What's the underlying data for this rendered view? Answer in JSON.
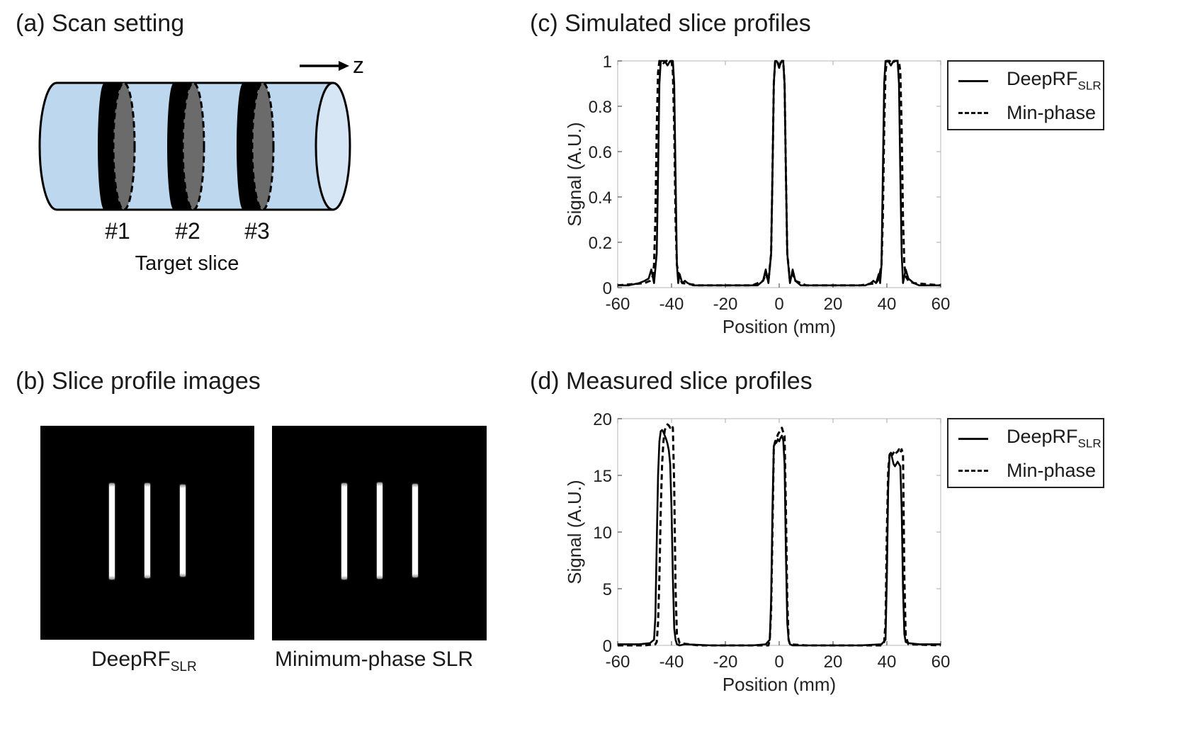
{
  "panels": {
    "a": {
      "title": "(a) Scan setting",
      "axis_label": "z",
      "slice_labels": [
        "#1",
        "#2",
        "#3"
      ],
      "caption": "Target slice",
      "colors": {
        "cylinder": "#bcd7ee",
        "cylinder_end": "#d6e6f5",
        "slice_dark": "#000000",
        "slice_face": "#6b6b6b"
      }
    },
    "b": {
      "title": "(b) Slice profile images",
      "images": [
        {
          "caption_main": "DeepRF",
          "caption_sub": "SLR"
        },
        {
          "caption_main": "Minimum-phase SLR",
          "caption_sub": ""
        }
      ]
    },
    "c": {
      "title": "(c) Simulated slice profiles"
    },
    "d": {
      "title": "(d) Measured slice profiles"
    }
  },
  "legend": {
    "deeprf_main": "DeepRF",
    "deeprf_sub": "SLR",
    "minphase": "Min-phase"
  },
  "chart_data": [
    {
      "id": "c",
      "type": "line",
      "title": "(c) Simulated slice profiles",
      "xlabel": "Position (mm)",
      "ylabel": "Signal (A.U.)",
      "xlim": [
        -60,
        60
      ],
      "ylim": [
        0,
        1
      ],
      "xticks": [
        -60,
        -40,
        -20,
        0,
        20,
        40,
        60
      ],
      "yticks": [
        0,
        0.2,
        0.4,
        0.6,
        0.8,
        1
      ],
      "ytick_labels": [
        "0",
        "0.2",
        "0.4",
        "0.6",
        "0.8",
        "1"
      ],
      "grid": false,
      "legend_position": "outside-right-top",
      "series": [
        {
          "name": "DeepRF_SLR",
          "style": "solid",
          "x": [
            -60,
            -56,
            -52,
            -50,
            -48.5,
            -47.5,
            -46.5,
            -45.5,
            -45,
            -44.5,
            -44,
            -43.5,
            -43,
            -42.5,
            -42,
            -41.5,
            -41,
            -40.5,
            -40,
            -39.5,
            -39,
            -38.5,
            -38,
            -37.5,
            -37,
            -36,
            -35,
            -34,
            -32,
            -28,
            -20,
            -12,
            -8,
            -6,
            -5,
            -4,
            -3,
            -2.5,
            -2,
            -1.5,
            -1,
            -0.5,
            0,
            0.5,
            1,
            1.5,
            2,
            2.5,
            3,
            4,
            5,
            6,
            8,
            12,
            20,
            28,
            32,
            34,
            35,
            36,
            37,
            37.5,
            38,
            38.5,
            39,
            39.5,
            40,
            40.5,
            41,
            41.5,
            42,
            42.5,
            43,
            43.5,
            44,
            44.5,
            45,
            45.5,
            46,
            47,
            48,
            49,
            50,
            52,
            56,
            60
          ],
          "y": [
            0.01,
            0.01,
            0.02,
            0.03,
            0.04,
            0.08,
            0.02,
            0.15,
            0.5,
            0.9,
            1.0,
            1.0,
            1.0,
            1.0,
            0.99,
            0.98,
            0.99,
            1.0,
            1.0,
            1.0,
            0.9,
            0.5,
            0.1,
            0.02,
            0.06,
            0.02,
            0.03,
            0.02,
            0.01,
            0.01,
            0.01,
            0.01,
            0.01,
            0.03,
            0.08,
            0.02,
            0.15,
            0.5,
            0.9,
            1.0,
            1.0,
            0.99,
            0.97,
            0.99,
            1.0,
            1.0,
            0.9,
            0.5,
            0.15,
            0.02,
            0.08,
            0.03,
            0.01,
            0.01,
            0.01,
            0.01,
            0.01,
            0.02,
            0.03,
            0.02,
            0.06,
            0.02,
            0.1,
            0.5,
            0.9,
            1.0,
            1.0,
            1.0,
            0.99,
            0.98,
            0.99,
            1.0,
            1.0,
            1.0,
            1.0,
            0.9,
            0.5,
            0.15,
            0.02,
            0.08,
            0.04,
            0.03,
            0.02,
            0.01,
            0.01,
            0.01
          ]
        },
        {
          "name": "Min-phase",
          "style": "dashed",
          "x": [
            -60,
            -50,
            -48,
            -47,
            -46.5,
            -46,
            -45.5,
            -45,
            -44.5,
            -44,
            -43,
            -42,
            -41,
            -40,
            -39.5,
            -39,
            -38.5,
            -38,
            -37,
            -36,
            -30,
            -20,
            -10,
            -6,
            -5,
            -4,
            -3,
            -2.5,
            -2,
            -1.5,
            -1,
            -0.5,
            0,
            0.5,
            1,
            1.5,
            2,
            2.5,
            3,
            4,
            5,
            6,
            10,
            20,
            30,
            36,
            37,
            38,
            38.5,
            39,
            39.5,
            40,
            41,
            42,
            43,
            44,
            44.5,
            45,
            45.5,
            46,
            46.5,
            47,
            48,
            50,
            60
          ],
          "y": [
            0.01,
            0.02,
            0.03,
            0.05,
            0.1,
            0.3,
            0.7,
            0.95,
            1.0,
            1.0,
            0.99,
            1.0,
            1.0,
            1.0,
            0.95,
            0.7,
            0.3,
            0.1,
            0.04,
            0.02,
            0.01,
            0.01,
            0.01,
            0.03,
            0.06,
            0.03,
            0.15,
            0.5,
            0.9,
            1.0,
            1.0,
            0.99,
            0.97,
            0.99,
            1.0,
            1.0,
            0.9,
            0.5,
            0.15,
            0.03,
            0.06,
            0.03,
            0.01,
            0.01,
            0.01,
            0.02,
            0.04,
            0.1,
            0.3,
            0.7,
            0.95,
            1.0,
            1.0,
            0.99,
            1.0,
            1.0,
            1.0,
            0.95,
            0.7,
            0.3,
            0.1,
            0.05,
            0.03,
            0.02,
            0.01
          ]
        }
      ]
    },
    {
      "id": "d",
      "type": "line",
      "title": "(d) Measured slice profiles",
      "xlabel": "Position (mm)",
      "ylabel": "Signal (A.U.)",
      "xlim": [
        -60,
        60
      ],
      "ylim": [
        0,
        20
      ],
      "xticks": [
        -60,
        -40,
        -20,
        0,
        20,
        40,
        60
      ],
      "yticks": [
        0,
        5,
        10,
        15,
        20
      ],
      "ytick_labels": [
        "0",
        "5",
        "10",
        "15",
        "20"
      ],
      "grid": false,
      "legend_position": "outside-right-top",
      "series": [
        {
          "name": "DeepRF_SLR",
          "style": "solid",
          "x": [
            -60,
            -52,
            -48,
            -46.5,
            -46,
            -45.5,
            -45,
            -44.5,
            -44,
            -43.5,
            -43,
            -42.5,
            -42,
            -41.5,
            -41,
            -40.5,
            -40,
            -39.5,
            -39,
            -38.5,
            -38,
            -37,
            -35,
            -25,
            -10,
            -5,
            -3.5,
            -3,
            -2.5,
            -2,
            -1.5,
            -1,
            -0.5,
            0,
            0.5,
            1,
            1.5,
            2,
            2.5,
            3,
            3.5,
            4,
            5,
            15,
            30,
            38,
            39.5,
            40,
            40.5,
            41,
            41.5,
            42,
            42.5,
            43,
            43.5,
            44,
            44.5,
            45,
            45.5,
            46,
            46.5,
            47,
            48,
            52,
            60
          ],
          "y": [
            0.1,
            0.1,
            0.2,
            0.5,
            2.5,
            9,
            15,
            18,
            18.9,
            19,
            18.8,
            18.5,
            18.2,
            17.8,
            17.2,
            16,
            12,
            6,
            1.5,
            0.5,
            0.1,
            0,
            0.1,
            0,
            0,
            0.1,
            0.5,
            4,
            12,
            17.6,
            17.8,
            17.9,
            18.2,
            18,
            18.3,
            18.5,
            18.1,
            16,
            8,
            2,
            0.5,
            0.1,
            0,
            0,
            0,
            0.1,
            0.5,
            6,
            14,
            16.8,
            17,
            16.5,
            16,
            15.8,
            16,
            16.2,
            16,
            15.8,
            12,
            5,
            1,
            0.3,
            0.2,
            0.1,
            0.1
          ]
        },
        {
          "name": "Min-phase",
          "style": "dashed",
          "x": [
            -60,
            -50,
            -46,
            -45.5,
            -45,
            -44.5,
            -44,
            -43.5,
            -43,
            -42.5,
            -42,
            -41.5,
            -41,
            -40.5,
            -40,
            -39.5,
            -39,
            -38.5,
            -38,
            -37,
            -30,
            -10,
            -4,
            -3.5,
            -3,
            -2.5,
            -2,
            -1.5,
            -1,
            -0.5,
            0,
            0.5,
            1,
            1.5,
            2,
            2.5,
            3,
            3.5,
            4,
            10,
            30,
            38,
            39,
            39.5,
            40,
            40.5,
            41,
            41.5,
            42,
            42.5,
            43,
            43.5,
            44,
            44.5,
            45,
            45.5,
            46,
            46.5,
            47,
            48,
            60
          ],
          "y": [
            0,
            0,
            0.1,
            0.3,
            2,
            6,
            12,
            16,
            18,
            19,
            19.3,
            19.5,
            19.4,
            19.2,
            19.4,
            19.2,
            14,
            5,
            1,
            0.2,
            0,
            0,
            0,
            0.5,
            3,
            10,
            17.5,
            18,
            18.2,
            18.6,
            18.8,
            19,
            19.2,
            18.8,
            18.5,
            12,
            4,
            0.5,
            0.1,
            0,
            0,
            0,
            0.3,
            2,
            10,
            15.5,
            16.8,
            17.1,
            16.8,
            17,
            17.2,
            17,
            17.1,
            17.3,
            17,
            17.3,
            16.8,
            6,
            0.8,
            0.1,
            0
          ]
        }
      ]
    }
  ]
}
